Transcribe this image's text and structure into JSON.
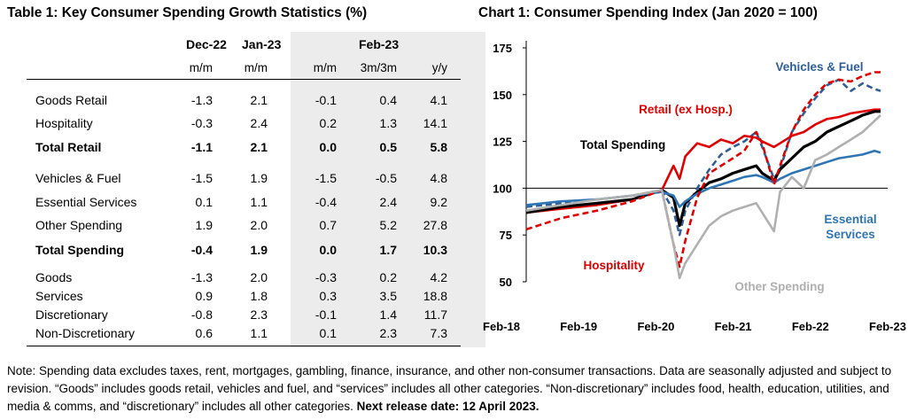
{
  "table": {
    "title": "Table 1: Key Consumer Spending Growth Statistics (%)",
    "group_headers": [
      "Dec-22",
      "Jan-23",
      "Feb-23"
    ],
    "sub_headers": [
      "m/m",
      "m/m",
      "m/m",
      "3m/3m",
      "y/y"
    ],
    "rows": [
      {
        "label": "Goods Retail",
        "values": [
          "-1.3",
          "2.1",
          "-0.1",
          "0.4",
          "4.1"
        ],
        "bold": false
      },
      {
        "label": "Hospitality",
        "values": [
          "-0.3",
          "2.4",
          "0.2",
          "1.3",
          "14.1"
        ],
        "bold": false
      },
      {
        "label": "Total Retail",
        "values": [
          "-1.1",
          "2.1",
          "0.0",
          "0.5",
          "5.8"
        ],
        "bold": true
      },
      {
        "label": "Vehicles & Fuel",
        "values": [
          "-1.5",
          "1.9",
          "-1.5",
          "-0.5",
          "4.8"
        ],
        "bold": false
      },
      {
        "label": "Essential Services",
        "values": [
          "0.1",
          "1.1",
          "-0.4",
          "2.4",
          "9.2"
        ],
        "bold": false
      },
      {
        "label": "Other Spending",
        "values": [
          "1.9",
          "2.0",
          "0.7",
          "5.2",
          "27.8"
        ],
        "bold": false
      },
      {
        "label": "Total Spending",
        "values": [
          "-0.4",
          "1.9",
          "0.0",
          "1.7",
          "10.3"
        ],
        "bold": true
      },
      {
        "label": "Goods",
        "values": [
          "-1.3",
          "2.0",
          "-0.3",
          "0.2",
          "4.2"
        ],
        "bold": false
      },
      {
        "label": "Services",
        "values": [
          "0.9",
          "1.8",
          "0.3",
          "3.5",
          "18.8"
        ],
        "bold": false
      },
      {
        "label": "Discretionary",
        "values": [
          "-0.8",
          "2.3",
          "-0.1",
          "1.4",
          "11.7"
        ],
        "bold": false
      },
      {
        "label": "Non-Discretionary",
        "values": [
          "0.6",
          "1.1",
          "0.1",
          "2.3",
          "7.3"
        ],
        "bold": false
      }
    ]
  },
  "chart_data": {
    "type": "line",
    "title": "Chart 1: Consumer Spending Index (Jan 2020 = 100)",
    "xlabel": "",
    "ylabel": "",
    "x_ticks": [
      "Feb-18",
      "Feb-19",
      "Feb-20",
      "Feb-21",
      "Feb-22",
      "Feb-23"
    ],
    "y_ticks": [
      "50",
      "75",
      "100",
      "125",
      "150",
      "175"
    ],
    "ylim": [
      50,
      175
    ],
    "grid": false,
    "reference_line": 100,
    "series": [
      {
        "name": "Vehicles & Fuel",
        "color": "#2e5f96",
        "dash": true,
        "x": [
          "2018-02",
          "2018-08",
          "2019-02",
          "2019-08",
          "2020-01",
          "2020-03",
          "2020-04",
          "2020-05",
          "2020-07",
          "2020-09",
          "2020-11",
          "2021-01",
          "2021-03",
          "2021-05",
          "2021-06",
          "2021-08",
          "2021-09",
          "2021-11",
          "2022-01",
          "2022-03",
          "2022-05",
          "2022-07",
          "2022-09",
          "2022-11",
          "2023-01",
          "2023-02"
        ],
        "y": [
          90,
          92,
          94,
          96,
          99,
          88,
          75,
          88,
          100,
          110,
          118,
          122,
          125,
          130,
          122,
          105,
          110,
          130,
          140,
          148,
          155,
          158,
          152,
          156,
          153,
          152
        ]
      },
      {
        "name": "Retail (ex Hosp.)",
        "color": "#e00000",
        "dash": false,
        "x": [
          "2018-02",
          "2018-08",
          "2019-02",
          "2019-08",
          "2020-01",
          "2020-03",
          "2020-04",
          "2020-05",
          "2020-07",
          "2020-09",
          "2020-11",
          "2021-01",
          "2021-03",
          "2021-05",
          "2021-06",
          "2021-08",
          "2021-09",
          "2021-11",
          "2022-01",
          "2022-03",
          "2022-05",
          "2022-07",
          "2022-09",
          "2022-11",
          "2023-01",
          "2023-02"
        ],
        "y": [
          87,
          89,
          91,
          94,
          99,
          112,
          105,
          117,
          124,
          122,
          126,
          124,
          128,
          127,
          125,
          122,
          124,
          128,
          130,
          134,
          137,
          138,
          140,
          141,
          142,
          142
        ]
      },
      {
        "name": "Total Spending",
        "color": "#000000",
        "dash": false,
        "x": [
          "2018-02",
          "2018-08",
          "2019-02",
          "2019-08",
          "2020-01",
          "2020-03",
          "2020-04",
          "2020-05",
          "2020-07",
          "2020-09",
          "2020-11",
          "2021-01",
          "2021-03",
          "2021-05",
          "2021-06",
          "2021-08",
          "2021-09",
          "2021-11",
          "2022-01",
          "2022-03",
          "2022-05",
          "2022-07",
          "2022-09",
          "2022-11",
          "2023-01",
          "2023-02"
        ],
        "y": [
          87,
          90,
          92,
          94,
          99,
          95,
          80,
          92,
          98,
          103,
          105,
          108,
          110,
          112,
          108,
          104,
          110,
          116,
          122,
          125,
          130,
          133,
          136,
          139,
          141,
          141
        ]
      },
      {
        "name": "Essential Services",
        "color": "#2e75b6",
        "dash": false,
        "x": [
          "2018-02",
          "2018-08",
          "2019-02",
          "2019-08",
          "2020-01",
          "2020-03",
          "2020-04",
          "2020-05",
          "2020-07",
          "2020-09",
          "2020-11",
          "2021-01",
          "2021-03",
          "2021-05",
          "2021-06",
          "2021-08",
          "2021-09",
          "2021-11",
          "2022-01",
          "2022-03",
          "2022-05",
          "2022-07",
          "2022-09",
          "2022-11",
          "2023-01",
          "2023-02"
        ],
        "y": [
          91,
          93,
          94,
          96,
          98,
          96,
          90,
          93,
          97,
          100,
          102,
          104,
          106,
          107,
          106,
          103,
          105,
          108,
          110,
          112,
          114,
          116,
          117,
          118,
          120,
          119
        ]
      },
      {
        "name": "Hospitality",
        "color": "#e00000",
        "dash": true,
        "x": [
          "2018-02",
          "2018-08",
          "2019-02",
          "2019-08",
          "2020-01",
          "2020-03",
          "2020-04",
          "2020-05",
          "2020-07",
          "2020-09",
          "2020-11",
          "2021-01",
          "2021-03",
          "2021-05",
          "2021-06",
          "2021-08",
          "2021-09",
          "2021-11",
          "2022-01",
          "2022-03",
          "2022-05",
          "2022-07",
          "2022-09",
          "2022-11",
          "2023-01",
          "2023-02"
        ],
        "y": [
          78,
          84,
          88,
          93,
          99,
          70,
          58,
          72,
          95,
          108,
          112,
          116,
          120,
          130,
          124,
          102,
          112,
          130,
          142,
          150,
          156,
          158,
          157,
          160,
          162,
          162
        ]
      },
      {
        "name": "Other Spending",
        "color": "#b0b0b0",
        "dash": false,
        "x": [
          "2018-02",
          "2018-08",
          "2019-02",
          "2019-08",
          "2020-01",
          "2020-03",
          "2020-04",
          "2020-05",
          "2020-07",
          "2020-09",
          "2020-11",
          "2021-01",
          "2021-03",
          "2021-05",
          "2021-06",
          "2021-08",
          "2021-09",
          "2021-11",
          "2022-01",
          "2022-03",
          "2022-05",
          "2022-07",
          "2022-09",
          "2022-11",
          "2023-01",
          "2023-02"
        ],
        "y": [
          88,
          91,
          94,
          96,
          99,
          70,
          52,
          60,
          70,
          80,
          85,
          88,
          90,
          92,
          87,
          77,
          98,
          106,
          100,
          115,
          118,
          122,
          126,
          130,
          136,
          139
        ]
      }
    ],
    "series_labels": [
      {
        "text": "Vehicles & Fuel",
        "color": "#2e5f96"
      },
      {
        "text": "Retail (ex Hosp.)",
        "color": "#e00000"
      },
      {
        "text": "Total Spending",
        "color": "#000000"
      },
      {
        "text": "Essential\nServices",
        "color": "#2e75b6"
      },
      {
        "text": "Hospitality",
        "color": "#e00000"
      },
      {
        "text": "Other Spending",
        "color": "#b0b0b0"
      }
    ]
  },
  "note": {
    "text": "Note: Spending data excludes taxes, rent, mortgages, gambling, finance, insurance, and other non-consumer transactions. Data are seasonally adjusted and subject to revision. “Goods” includes goods retail, vehicles and fuel, and “services” includes all other categories. “Non-discretionary” includes food, health, education, utilities, and media & comms, and “discretionary” includes all other categories. ",
    "bold_text": "Next release date: 12 April 2023."
  }
}
